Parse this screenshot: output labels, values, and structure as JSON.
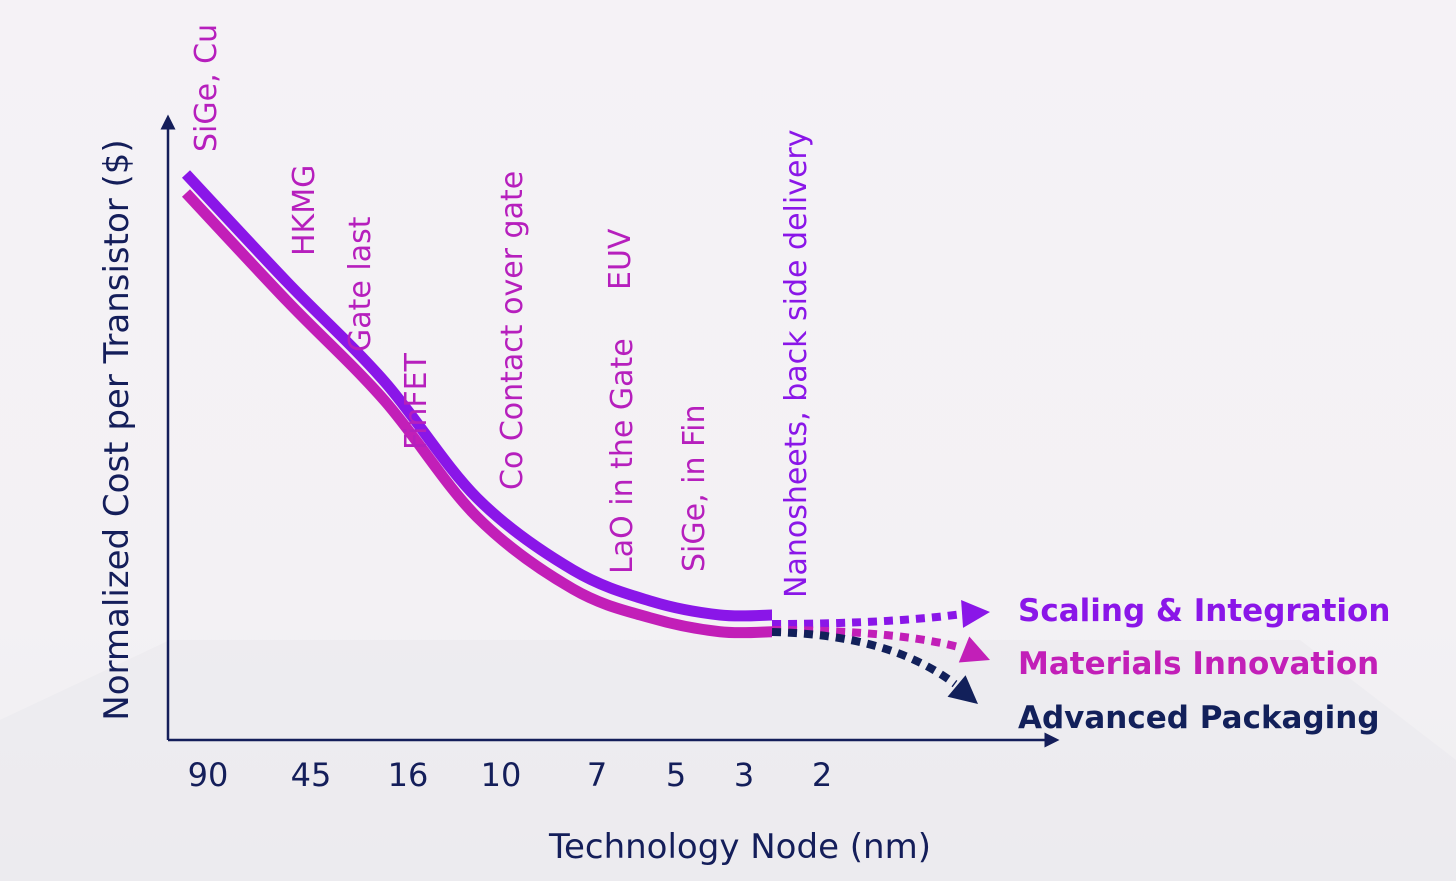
{
  "chart_data": {
    "type": "line",
    "xlabel": "Technology Node (nm)",
    "ylabel": "Normalized Cost  per Transistor ($)",
    "categories": [
      "90",
      "45",
      "16",
      "10",
      "7",
      "5",
      "3",
      "2"
    ],
    "series": [
      {
        "values": [
          1.0,
          0.76,
          0.54,
          0.28,
          0.12,
          0.05,
          0.02,
          0.02
        ]
      },
      {
        "values": [
          0.98,
          0.74,
          0.52,
          0.26,
          0.1,
          0.035,
          0.005,
          0.005
        ]
      }
    ],
    "projections": [
      {
        "name": "Scaling & Integration",
        "color": "#8a16e8"
      },
      {
        "name": "Materials Innovation",
        "color": "#c21fb8"
      },
      {
        "name": "Advanced Packaging",
        "color": "#12205a"
      }
    ],
    "annotations": [
      {
        "text": "SiGe, Cu",
        "color": "#b61fbd"
      },
      {
        "text": "HKMG",
        "color": "#b61fbd"
      },
      {
        "text": "Gate last",
        "color": "#b61fbd"
      },
      {
        "text": "FinFET",
        "color": "#b61fbd"
      },
      {
        "text": "Co  Contact over gate",
        "color": "#b61fbd"
      },
      {
        "text": "LaO in the Gate",
        "color": "#b61fbd"
      },
      {
        "text": "EUV",
        "color": "#b61fbd"
      },
      {
        "text": "SiGe, in Fin",
        "color": "#b61fbd"
      },
      {
        "text": "Nanosheets, back side delivery",
        "color": "#8a16e8"
      }
    ],
    "axis_color": "#141e5a"
  }
}
